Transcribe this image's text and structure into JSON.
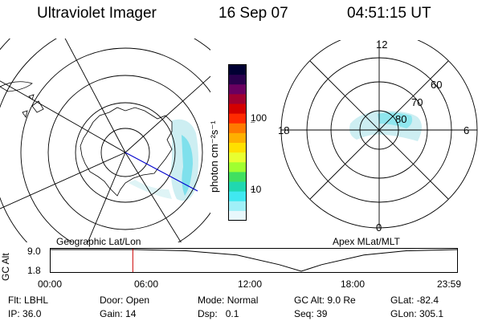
{
  "header": {
    "instrument": "Ultraviolet Imager",
    "date": "16 Sep 07",
    "time": "04:51:15 UT"
  },
  "colorbar": {
    "unit_label": "photon cm⁻²s⁻¹",
    "ticks": [
      "100",
      "10"
    ],
    "colors": [
      "#000033",
      "#2a004d",
      "#6a0060",
      "#a00030",
      "#d40000",
      "#ff2a00",
      "#ff7a00",
      "#ffb000",
      "#ffe000",
      "#e8ff30",
      "#a0ff30",
      "#40e060",
      "#20d8b0",
      "#40e8f0",
      "#a0f0f8",
      "#e8f8fc"
    ]
  },
  "left_map": {
    "label": "Geographic Lat/Lon"
  },
  "right_map": {
    "label": "Apex MLat/MLT",
    "mlt_labels": {
      "top": "12",
      "bottom": "0",
      "left": "18",
      "right": "6"
    },
    "lat_labels": [
      "60",
      "70",
      "80"
    ]
  },
  "altitude_plot": {
    "ylabel": "GC Alt",
    "yticks": [
      "9.0",
      "1.8"
    ],
    "xticks": [
      "00:00",
      "06:00",
      "12:00",
      "18:00",
      "23:59"
    ],
    "marker_hour": 4.854,
    "altitude_curve": [
      [
        0,
        9.0
      ],
      [
        3,
        9.0
      ],
      [
        5,
        9.0
      ],
      [
        8,
        8.6
      ],
      [
        11,
        7.2
      ],
      [
        13.5,
        4.0
      ],
      [
        14.8,
        1.8
      ],
      [
        16,
        4.0
      ],
      [
        18.5,
        7.2
      ],
      [
        21,
        8.6
      ],
      [
        24,
        9.0
      ]
    ]
  },
  "footer": [
    [
      {
        "k": "Flt:",
        "v": "LBHL"
      },
      {
        "k": "Door:",
        "v": "Open"
      },
      {
        "k": "Mode:",
        "v": "Normal"
      },
      {
        "k": "GC Alt:",
        "v": "9.0 Re"
      },
      {
        "k": "GLat:",
        "v": "-82.4"
      }
    ],
    [
      {
        "k": "IP:",
        "v": "36.0"
      },
      {
        "k": "Gain:",
        "v": "14"
      },
      {
        "k": "Dsp:",
        "v": "0.1"
      },
      {
        "k": "Seq:",
        "v": "39"
      },
      {
        "k": "GLon:",
        "v": "305.1"
      }
    ]
  ]
}
